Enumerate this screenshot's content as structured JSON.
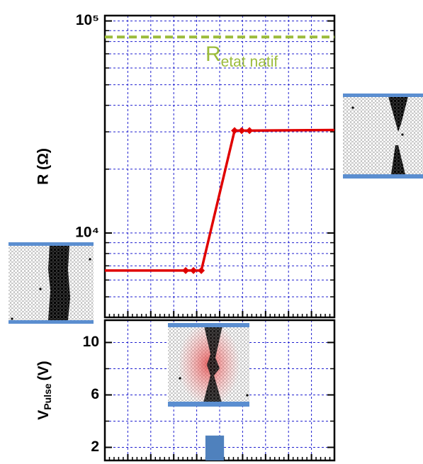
{
  "chart_data": [
    {
      "type": "line",
      "log_y": true,
      "ylabel": "R (Ω)",
      "xlim": [
        0,
        10
      ],
      "xticks": [
        0,
        1,
        2,
        3,
        4,
        5,
        6,
        7,
        8,
        9,
        10
      ],
      "ylim": [
        4000,
        106000
      ],
      "yticks": [
        {
          "value": 10000,
          "label": "10⁴"
        },
        {
          "value": 100000,
          "label": "10⁵"
        }
      ],
      "yminor": [
        5000,
        6000,
        7000,
        8000,
        9000,
        20000,
        30000,
        40000,
        50000,
        60000,
        70000,
        80000,
        90000
      ],
      "grid": true,
      "color": "#e00000",
      "x": [
        0,
        3.52,
        3.86,
        4.2,
        5.65,
        5.96,
        6.3,
        10
      ],
      "values": [
        6650,
        6650,
        6650,
        6650,
        30400,
        30400,
        30400,
        30600
      ],
      "reference": {
        "value": 84000,
        "label": "R",
        "label_sub": "etat natif",
        "color": "#9bbb3b"
      }
    },
    {
      "type": "bar",
      "ylabel": "V",
      "ylabel_sub": "Pulse",
      "ylabel_unit": "(V)",
      "xlim": [
        0,
        10
      ],
      "xticks": [
        0,
        1,
        2,
        3,
        4,
        5,
        6,
        7,
        8,
        9,
        10
      ],
      "ylim": [
        1,
        11.7
      ],
      "yticks": [
        2,
        6,
        10
      ],
      "yminor": [
        4,
        8
      ],
      "grid": true,
      "color": "#4f81bd",
      "bars": [
        {
          "x": [
            4.38,
            5.19
          ],
          "value": 2.9
        }
      ]
    }
  ]
}
